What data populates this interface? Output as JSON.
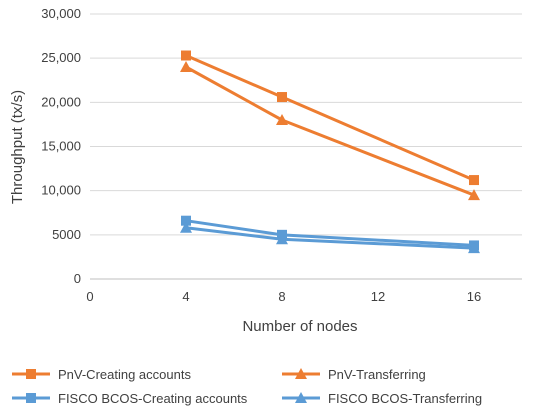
{
  "chart_data": {
    "type": "line",
    "xlabel": "Number of nodes",
    "ylabel": "Throughput (tx/s)",
    "xlim": [
      0,
      18
    ],
    "ylim": [
      0,
      30000
    ],
    "x_ticks": [
      0,
      4,
      8,
      12,
      16
    ],
    "x_tick_labels": [
      "0",
      "4",
      "8",
      "12",
      "16"
    ],
    "y_ticks": [
      0,
      5000,
      10000,
      15000,
      20000,
      25000,
      30000
    ],
    "y_tick_labels": [
      "0",
      "5000",
      "10,000",
      "15,000",
      "20,000",
      "25,000",
      "30,000"
    ],
    "grid": "horizontal",
    "legend_position": "bottom",
    "series": [
      {
        "name": "PnV-Creating accounts",
        "x": [
          4,
          8,
          16
        ],
        "y": [
          25300,
          20600,
          11200
        ],
        "color": "#ED7D31",
        "marker": "square"
      },
      {
        "name": "PnV-Transferring",
        "x": [
          4,
          8,
          16
        ],
        "y": [
          24000,
          18000,
          9500
        ],
        "color": "#ED7D31",
        "marker": "triangle"
      },
      {
        "name": "FISCO BCOS-Creating accounts",
        "x": [
          4,
          8,
          16
        ],
        "y": [
          6600,
          5000,
          3800
        ],
        "color": "#5B9BD5",
        "marker": "square"
      },
      {
        "name": "FISCO BCOS-Transferring",
        "x": [
          4,
          8,
          16
        ],
        "y": [
          5800,
          4500,
          3500
        ],
        "color": "#5B9BD5",
        "marker": "triangle"
      }
    ]
  }
}
